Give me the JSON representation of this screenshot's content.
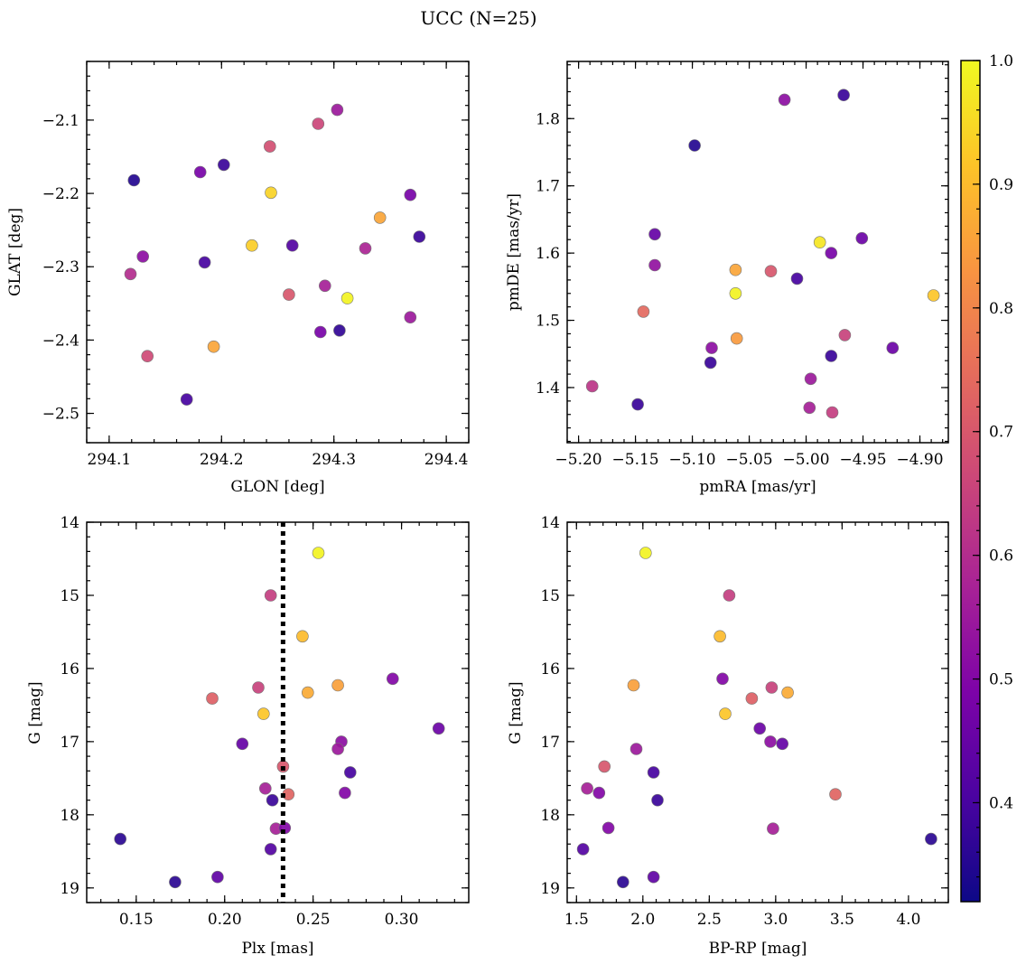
{
  "figure": {
    "title": "UCC (N=25)",
    "colormap": "plasma",
    "colorbar": {
      "vmin": 0.32,
      "vmax": 1.0,
      "ticks": [
        0.4,
        0.5,
        0.6,
        0.7,
        0.8,
        0.9,
        1.0
      ],
      "tick_labels": [
        "0.4",
        "0.5",
        "0.6",
        "0.7",
        "0.8",
        "0.9",
        "1.0"
      ]
    }
  },
  "chart_data": [
    {
      "type": "scatter",
      "xlabel": "GLON [deg]",
      "ylabel": "GLAT [deg]",
      "xlim": [
        294.08,
        294.42
      ],
      "ylim": [
        -2.54,
        -2.02
      ],
      "y_inverted": false,
      "xticks": [
        294.1,
        294.2,
        294.3,
        294.4
      ],
      "xtick_labels": [
        "294.1",
        "294.2",
        "294.3",
        "294.4"
      ],
      "yticks": [
        -2.5,
        -2.4,
        -2.3,
        -2.2,
        -2.1
      ],
      "ytick_labels": [
        "−2.5",
        "−2.4",
        "−2.3",
        "−2.2",
        "−2.1"
      ],
      "points": [
        {
          "x": 294.122,
          "y": -2.182,
          "c": 0.35
        },
        {
          "x": 294.202,
          "y": -2.161,
          "c": 0.38
        },
        {
          "x": 294.181,
          "y": -2.171,
          "c": 0.48
        },
        {
          "x": 294.243,
          "y": -2.136,
          "c": 0.68
        },
        {
          "x": 294.286,
          "y": -2.105,
          "c": 0.66
        },
        {
          "x": 294.303,
          "y": -2.086,
          "c": 0.55
        },
        {
          "x": 294.244,
          "y": -2.199,
          "c": 0.94
        },
        {
          "x": 294.368,
          "y": -2.202,
          "c": 0.48
        },
        {
          "x": 294.341,
          "y": -2.233,
          "c": 0.86
        },
        {
          "x": 294.376,
          "y": -2.259,
          "c": 0.38
        },
        {
          "x": 294.227,
          "y": -2.271,
          "c": 0.93
        },
        {
          "x": 294.263,
          "y": -2.271,
          "c": 0.42
        },
        {
          "x": 294.328,
          "y": -2.275,
          "c": 0.58
        },
        {
          "x": 294.13,
          "y": -2.286,
          "c": 0.52
        },
        {
          "x": 294.185,
          "y": -2.294,
          "c": 0.4
        },
        {
          "x": 294.119,
          "y": -2.31,
          "c": 0.6
        },
        {
          "x": 294.292,
          "y": -2.326,
          "c": 0.57
        },
        {
          "x": 294.26,
          "y": -2.338,
          "c": 0.7
        },
        {
          "x": 294.312,
          "y": -2.343,
          "c": 0.99
        },
        {
          "x": 294.368,
          "y": -2.369,
          "c": 0.55
        },
        {
          "x": 294.288,
          "y": -2.389,
          "c": 0.48
        },
        {
          "x": 294.305,
          "y": -2.387,
          "c": 0.37
        },
        {
          "x": 294.193,
          "y": -2.409,
          "c": 0.86
        },
        {
          "x": 294.134,
          "y": -2.422,
          "c": 0.67
        },
        {
          "x": 294.169,
          "y": -2.481,
          "c": 0.4
        }
      ]
    },
    {
      "type": "scatter",
      "xlabel": "pmRA [mas/yr]",
      "ylabel": "pmDE [mas/yr]",
      "xlim": [
        -5.21,
        -4.875
      ],
      "ylim": [
        1.318,
        1.885
      ],
      "y_inverted": false,
      "xticks": [
        -5.2,
        -5.15,
        -5.1,
        -5.05,
        -5.0,
        -4.95,
        -4.9
      ],
      "xtick_labels": [
        "−5.20",
        "−5.15",
        "−5.10",
        "−5.05",
        "−5.00",
        "−4.95",
        "−4.90"
      ],
      "yticks": [
        1.4,
        1.5,
        1.6,
        1.7,
        1.8
      ],
      "ytick_labels": [
        "1.4",
        "1.5",
        "1.6",
        "1.7",
        "1.8"
      ],
      "points": [
        {
          "x": -5.019,
          "y": 1.828,
          "c": 0.52
        },
        {
          "x": -4.967,
          "y": 1.835,
          "c": 0.38
        },
        {
          "x": -5.098,
          "y": 1.76,
          "c": 0.35
        },
        {
          "x": -5.133,
          "y": 1.628,
          "c": 0.45
        },
        {
          "x": -4.988,
          "y": 1.616,
          "c": 0.97
        },
        {
          "x": -4.951,
          "y": 1.622,
          "c": 0.46
        },
        {
          "x": -4.978,
          "y": 1.6,
          "c": 0.48
        },
        {
          "x": -5.133,
          "y": 1.582,
          "c": 0.53
        },
        {
          "x": -5.062,
          "y": 1.575,
          "c": 0.86
        },
        {
          "x": -5.031,
          "y": 1.573,
          "c": 0.7
        },
        {
          "x": -5.008,
          "y": 1.562,
          "c": 0.4
        },
        {
          "x": -5.062,
          "y": 1.54,
          "c": 0.99
        },
        {
          "x": -4.888,
          "y": 1.537,
          "c": 0.92
        },
        {
          "x": -5.143,
          "y": 1.513,
          "c": 0.74
        },
        {
          "x": -5.061,
          "y": 1.473,
          "c": 0.84
        },
        {
          "x": -4.966,
          "y": 1.478,
          "c": 0.65
        },
        {
          "x": -5.083,
          "y": 1.459,
          "c": 0.52
        },
        {
          "x": -4.924,
          "y": 1.459,
          "c": 0.46
        },
        {
          "x": -4.978,
          "y": 1.447,
          "c": 0.38
        },
        {
          "x": -5.084,
          "y": 1.437,
          "c": 0.38
        },
        {
          "x": -4.996,
          "y": 1.413,
          "c": 0.55
        },
        {
          "x": -5.188,
          "y": 1.402,
          "c": 0.62
        },
        {
          "x": -5.148,
          "y": 1.375,
          "c": 0.38
        },
        {
          "x": -4.997,
          "y": 1.37,
          "c": 0.57
        },
        {
          "x": -4.977,
          "y": 1.363,
          "c": 0.64
        }
      ]
    },
    {
      "type": "scatter",
      "xlabel": "Plx [mas]",
      "ylabel": "G [mag]",
      "xlim": [
        0.122,
        0.338
      ],
      "ylim": [
        14.0,
        19.2
      ],
      "y_inverted": true,
      "xticks": [
        0.15,
        0.2,
        0.25,
        0.3
      ],
      "xtick_labels": [
        "0.15",
        "0.20",
        "0.25",
        "0.30"
      ],
      "yticks": [
        14,
        15,
        16,
        17,
        18,
        19
      ],
      "ytick_labels": [
        "14",
        "15",
        "16",
        "17",
        "18",
        "19"
      ],
      "vline": {
        "x": 0.233,
        "style": "dotted"
      },
      "points": [
        {
          "x": 0.253,
          "y": 14.42,
          "c": 0.99
        },
        {
          "x": 0.226,
          "y": 15.0,
          "c": 0.64
        },
        {
          "x": 0.244,
          "y": 15.56,
          "c": 0.9
        },
        {
          "x": 0.295,
          "y": 16.14,
          "c": 0.5
        },
        {
          "x": 0.219,
          "y": 16.26,
          "c": 0.65
        },
        {
          "x": 0.264,
          "y": 16.23,
          "c": 0.85
        },
        {
          "x": 0.247,
          "y": 16.33,
          "c": 0.87
        },
        {
          "x": 0.193,
          "y": 16.41,
          "c": 0.72
        },
        {
          "x": 0.222,
          "y": 16.62,
          "c": 0.92
        },
        {
          "x": 0.321,
          "y": 16.82,
          "c": 0.46
        },
        {
          "x": 0.21,
          "y": 17.03,
          "c": 0.45
        },
        {
          "x": 0.266,
          "y": 17.0,
          "c": 0.52
        },
        {
          "x": 0.264,
          "y": 17.1,
          "c": 0.55
        },
        {
          "x": 0.233,
          "y": 17.34,
          "c": 0.7
        },
        {
          "x": 0.271,
          "y": 17.42,
          "c": 0.4
        },
        {
          "x": 0.223,
          "y": 17.64,
          "c": 0.57
        },
        {
          "x": 0.236,
          "y": 17.72,
          "c": 0.73
        },
        {
          "x": 0.268,
          "y": 17.7,
          "c": 0.5
        },
        {
          "x": 0.227,
          "y": 17.8,
          "c": 0.38
        },
        {
          "x": 0.229,
          "y": 18.19,
          "c": 0.57
        },
        {
          "x": 0.234,
          "y": 18.18,
          "c": 0.5
        },
        {
          "x": 0.141,
          "y": 18.33,
          "c": 0.36
        },
        {
          "x": 0.226,
          "y": 18.47,
          "c": 0.42
        },
        {
          "x": 0.196,
          "y": 18.85,
          "c": 0.44
        },
        {
          "x": 0.172,
          "y": 18.92,
          "c": 0.36
        }
      ]
    },
    {
      "type": "scatter",
      "xlabel": "BP-RP [mag]",
      "ylabel": "G [mag]",
      "xlim": [
        1.43,
        4.3
      ],
      "ylim": [
        14.0,
        19.2
      ],
      "y_inverted": true,
      "xticks": [
        1.5,
        2.0,
        2.5,
        3.0,
        3.5,
        4.0
      ],
      "xtick_labels": [
        "1.5",
        "2.0",
        "2.5",
        "3.0",
        "3.5",
        "4.0"
      ],
      "yticks": [
        14,
        15,
        16,
        17,
        18,
        19
      ],
      "ytick_labels": [
        "14",
        "15",
        "16",
        "17",
        "18",
        "19"
      ],
      "points": [
        {
          "x": 2.02,
          "y": 14.42,
          "c": 0.99
        },
        {
          "x": 2.65,
          "y": 15.0,
          "c": 0.64
        },
        {
          "x": 2.58,
          "y": 15.56,
          "c": 0.9
        },
        {
          "x": 2.6,
          "y": 16.14,
          "c": 0.5
        },
        {
          "x": 1.93,
          "y": 16.23,
          "c": 0.85
        },
        {
          "x": 2.97,
          "y": 16.26,
          "c": 0.65
        },
        {
          "x": 3.09,
          "y": 16.33,
          "c": 0.87
        },
        {
          "x": 2.82,
          "y": 16.41,
          "c": 0.72
        },
        {
          "x": 2.62,
          "y": 16.62,
          "c": 0.92
        },
        {
          "x": 2.88,
          "y": 16.82,
          "c": 0.46
        },
        {
          "x": 2.96,
          "y": 17.0,
          "c": 0.52
        },
        {
          "x": 3.05,
          "y": 17.03,
          "c": 0.45
        },
        {
          "x": 1.95,
          "y": 17.1,
          "c": 0.55
        },
        {
          "x": 1.71,
          "y": 17.34,
          "c": 0.7
        },
        {
          "x": 2.08,
          "y": 17.42,
          "c": 0.4
        },
        {
          "x": 1.58,
          "y": 17.64,
          "c": 0.57
        },
        {
          "x": 1.67,
          "y": 17.7,
          "c": 0.5
        },
        {
          "x": 3.45,
          "y": 17.72,
          "c": 0.73
        },
        {
          "x": 2.11,
          "y": 17.8,
          "c": 0.38
        },
        {
          "x": 1.74,
          "y": 18.18,
          "c": 0.5
        },
        {
          "x": 2.98,
          "y": 18.19,
          "c": 0.57
        },
        {
          "x": 4.17,
          "y": 18.33,
          "c": 0.36
        },
        {
          "x": 1.55,
          "y": 18.47,
          "c": 0.42
        },
        {
          "x": 2.08,
          "y": 18.85,
          "c": 0.44
        },
        {
          "x": 1.85,
          "y": 18.92,
          "c": 0.36
        }
      ]
    }
  ]
}
